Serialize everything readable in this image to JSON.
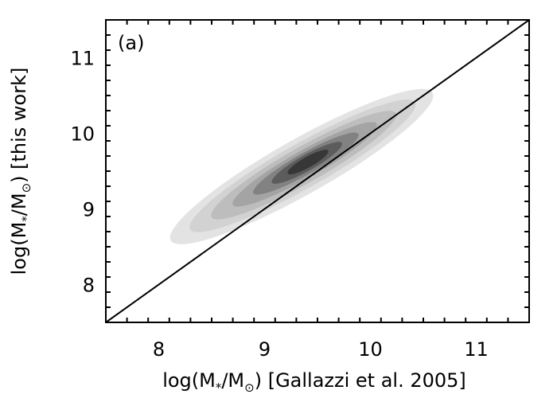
{
  "chart_data": {
    "type": "density_contour",
    "panel_label": "(a)",
    "xlabel_main": "log(M",
    "xlabel_sub": "*",
    "xlabel_mid": "/M",
    "xlabel_sub2": "⊙",
    "xlabel_tail": ") [Gallazzi et al. 2005]",
    "ylabel_main": "log(M",
    "ylabel_sub": "*",
    "ylabel_mid": "/M",
    "ylabel_sub2": "⊙",
    "ylabel_tail": ") [this work]",
    "xlim": [
      7.5,
      11.5
    ],
    "ylim": [
      7.5,
      11.5
    ],
    "xticks": [
      8,
      9,
      10,
      11
    ],
    "yticks": [
      8,
      9,
      10,
      11
    ],
    "xtick_labels": [
      "8",
      "9",
      "10",
      "11"
    ],
    "ytick_labels": [
      "8",
      "9",
      "10",
      "11"
    ],
    "reference_line": {
      "from": [
        7.5,
        7.5
      ],
      "to": [
        11.5,
        11.5
      ],
      "description": "one-to-one line"
    },
    "density_levels": [
      {
        "level": 1,
        "color": "#e3e3e3",
        "cx": 9.35,
        "cy": 9.56,
        "sx": 1.42,
        "sy": 0.26
      },
      {
        "level": 2,
        "color": "#d2d2d2",
        "cx": 9.36,
        "cy": 9.57,
        "sx": 1.22,
        "sy": 0.21
      },
      {
        "level": 3,
        "color": "#bdbdbd",
        "cx": 9.37,
        "cy": 9.58,
        "sx": 1.0,
        "sy": 0.17
      },
      {
        "level": 4,
        "color": "#a4a4a4",
        "cx": 9.38,
        "cy": 9.59,
        "sx": 0.78,
        "sy": 0.13
      },
      {
        "level": 5,
        "color": "#828282",
        "cx": 9.39,
        "cy": 9.6,
        "sx": 0.57,
        "sy": 0.1
      },
      {
        "level": 6,
        "color": "#5c5c5c",
        "cx": 9.4,
        "cy": 9.61,
        "sx": 0.38,
        "sy": 0.075
      },
      {
        "level": 7,
        "color": "#373737",
        "cx": 9.41,
        "cy": 9.62,
        "sx": 0.22,
        "sy": 0.05
      }
    ],
    "grid": false
  }
}
